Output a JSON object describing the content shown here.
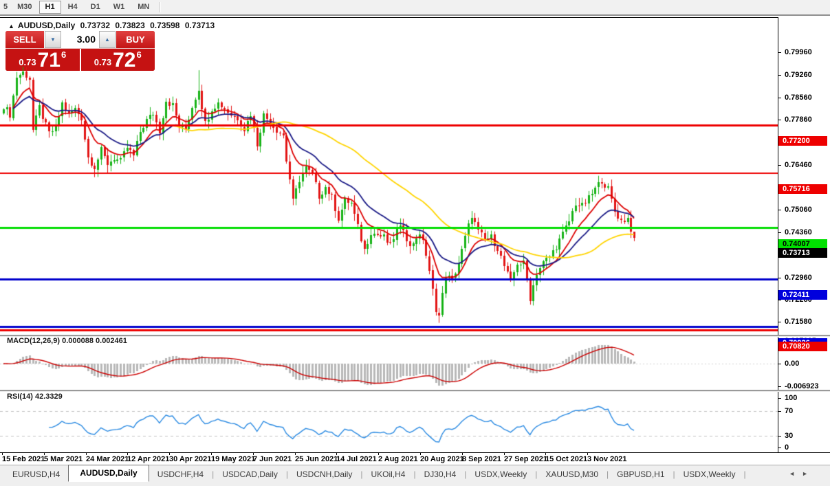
{
  "toolbar": {
    "timeframes": [
      {
        "label": "5",
        "active": false,
        "partial": true
      },
      {
        "label": "M30",
        "active": false
      },
      {
        "label": "H1",
        "active": true
      },
      {
        "label": "H4",
        "active": false
      },
      {
        "label": "D1",
        "active": false
      },
      {
        "label": "W1",
        "active": false
      },
      {
        "label": "MN",
        "active": false
      }
    ]
  },
  "chart_header": {
    "collapse_arrow": "▲",
    "symbol": "AUDUSD,Daily",
    "open": "0.73732",
    "high": "0.73823",
    "low": "0.73598",
    "close": "0.73713"
  },
  "trade_panel": {
    "sell_label": "SELL",
    "buy_label": "BUY",
    "volume": "3.00",
    "spin_down_glyph": "▼",
    "spin_up_glyph": "▲",
    "sell_quote": {
      "prefix": "0.73",
      "big": "71",
      "sup": "6"
    },
    "buy_quote": {
      "prefix": "0.73",
      "big": "72",
      "sup": "6"
    }
  },
  "price_axis": {
    "ticks": [
      {
        "label": "0.79960",
        "price": 0.7996
      },
      {
        "label": "0.79260",
        "price": 0.7926
      },
      {
        "label": "0.78560",
        "price": 0.7856
      },
      {
        "label": "0.77860",
        "price": 0.7786
      },
      {
        "label": "0.76460",
        "price": 0.7646
      },
      {
        "label": "0.75060",
        "price": 0.7506
      },
      {
        "label": "0.74360",
        "price": 0.7436
      },
      {
        "label": "0.72960",
        "price": 0.7296
      },
      {
        "label": "0.72280",
        "price": 0.7228
      },
      {
        "label": "0.71580",
        "price": 0.7158
      }
    ],
    "badges": [
      {
        "label": "0.70926",
        "price": 0.70926,
        "bg": "#0000dd",
        "fg": "#ffffff"
      },
      {
        "label": "0.77200",
        "price": 0.772,
        "bg": "#ee0000",
        "fg": "#ffffff"
      },
      {
        "label": "0.75716",
        "price": 0.75716,
        "bg": "#ee0000",
        "fg": "#ffffff"
      },
      {
        "label": "0.74007",
        "price": 0.74007,
        "bg": "#00e000",
        "fg": "#000000"
      },
      {
        "label": "0.73713",
        "price": 0.73713,
        "bg": "#000000",
        "fg": "#ffffff"
      },
      {
        "label": "0.72411",
        "price": 0.72411,
        "bg": "#0000dd",
        "fg": "#ffffff"
      },
      {
        "label": "0.70820",
        "price": 0.7082,
        "bg": "#ee0000",
        "fg": "#ffffff"
      }
    ]
  },
  "macd_panel": {
    "label": "MACD(12,26,9) 0.000088 0.002461",
    "axis": [
      {
        "label": "0.007015",
        "value": 0.007015
      },
      {
        "label": "0.00",
        "value": 0
      },
      {
        "label": "-0.006923",
        "value": -0.006923
      }
    ]
  },
  "rsi_panel": {
    "label": "RSI(14) 42.3329",
    "axis": [
      {
        "label": "100",
        "value": 100
      },
      {
        "label": "70",
        "value": 70
      },
      {
        "label": "30",
        "value": 30
      },
      {
        "label": "0",
        "value": 0
      }
    ],
    "levels": [
      70,
      30
    ]
  },
  "date_axis": [
    "15 Feb 2021",
    "5 Mar 2021",
    "24 Mar 2021",
    "12 Apr 2021",
    "30 Apr 2021",
    "19 May 2021",
    "7 Jun 2021",
    "25 Jun 2021",
    "14 Jul 2021",
    "2 Aug 2021",
    "20 Aug 2021",
    "8 Sep 2021",
    "27 Sep 2021",
    "15 Oct 2021",
    "3 Nov 2021"
  ],
  "tab_bar": {
    "tabs": [
      {
        "label": "EURUSD,H4",
        "active": false
      },
      {
        "label": "AUDUSD,Daily",
        "active": true
      },
      {
        "label": "USDCHF,H4",
        "active": false
      },
      {
        "label": "USDCAD,Daily",
        "active": false
      },
      {
        "label": "USDCNH,Daily",
        "active": false
      },
      {
        "label": "UKOil,H4",
        "active": false
      },
      {
        "label": "DJ30,H4",
        "active": false
      },
      {
        "label": "USDX,Weekly",
        "active": false
      },
      {
        "label": "XAUUSD,M30",
        "active": false
      },
      {
        "label": "GBPUSD,H1",
        "active": false
      },
      {
        "label": "USDX,Weekly",
        "active": false
      }
    ],
    "scroll_left_glyph": "◄",
    "scroll_right_glyph": "►"
  },
  "chart_data": {
    "type": "candlestick",
    "symbol": "AUDUSD",
    "timeframe": "Daily",
    "current_ohlc": {
      "open": 0.73732,
      "high": 0.73823,
      "low": 0.73598,
      "close": 0.73713
    },
    "num_candles": 195,
    "ylim": [
      0.706,
      0.806
    ],
    "colors": {
      "bull": "#17b317",
      "bear": "#e21414",
      "ma_fast": "#dd0000",
      "ma_mid": "#1a1a86",
      "ma_slow": "#ffd400",
      "macd_hist": "#b8b8b8",
      "macd_signal": "#cc0000",
      "rsi_line": "#2a8ae2",
      "level_dash": "#c0c0c0"
    },
    "close_keypoints": [
      [
        0,
        0.778
      ],
      [
        2,
        0.7752
      ],
      [
        4,
        0.787
      ],
      [
        6,
        0.7885
      ],
      [
        8,
        0.7866
      ],
      [
        9,
        0.7706
      ],
      [
        11,
        0.7775
      ],
      [
        13,
        0.7718
      ],
      [
        14,
        0.7695
      ],
      [
        16,
        0.7712
      ],
      [
        18,
        0.7788
      ],
      [
        20,
        0.7752
      ],
      [
        22,
        0.777
      ],
      [
        24,
        0.7742
      ],
      [
        26,
        0.762
      ],
      [
        28,
        0.759
      ],
      [
        30,
        0.7642
      ],
      [
        32,
        0.76
      ],
      [
        34,
        0.7618
      ],
      [
        36,
        0.7608
      ],
      [
        38,
        0.765
      ],
      [
        40,
        0.7625
      ],
      [
        42,
        0.77
      ],
      [
        44,
        0.7735
      ],
      [
        46,
        0.7758
      ],
      [
        48,
        0.7702
      ],
      [
        50,
        0.7798
      ],
      [
        52,
        0.7782
      ],
      [
        54,
        0.7716
      ],
      [
        56,
        0.7708
      ],
      [
        58,
        0.7778
      ],
      [
        60,
        0.7835
      ],
      [
        62,
        0.7725
      ],
      [
        64,
        0.7772
      ],
      [
        66,
        0.7788
      ],
      [
        68,
        0.7772
      ],
      [
        70,
        0.7752
      ],
      [
        72,
        0.7742
      ],
      [
        74,
        0.7708
      ],
      [
        76,
        0.7755
      ],
      [
        78,
        0.7662
      ],
      [
        80,
        0.7752
      ],
      [
        82,
        0.773
      ],
      [
        84,
        0.7706
      ],
      [
        86,
        0.7688
      ],
      [
        87,
        0.761
      ],
      [
        88,
        0.7552
      ],
      [
        89,
        0.7482
      ],
      [
        91,
        0.7552
      ],
      [
        93,
        0.7588
      ],
      [
        95,
        0.7565
      ],
      [
        97,
        0.75
      ],
      [
        99,
        0.7528
      ],
      [
        101,
        0.7495
      ],
      [
        103,
        0.7432
      ],
      [
        105,
        0.7485
      ],
      [
        107,
        0.7478
      ],
      [
        109,
        0.7402
      ],
      [
        111,
        0.7332
      ],
      [
        113,
        0.7388
      ],
      [
        115,
        0.738
      ],
      [
        117,
        0.7372
      ],
      [
        119,
        0.7345
      ],
      [
        121,
        0.7395
      ],
      [
        123,
        0.7402
      ],
      [
        125,
        0.7338
      ],
      [
        127,
        0.7375
      ],
      [
        129,
        0.7368
      ],
      [
        131,
        0.7262
      ],
      [
        133,
        0.7148
      ],
      [
        134,
        0.7128
      ],
      [
        136,
        0.7255
      ],
      [
        138,
        0.7238
      ],
      [
        140,
        0.7292
      ],
      [
        142,
        0.737
      ],
      [
        144,
        0.7442
      ],
      [
        146,
        0.7388
      ],
      [
        148,
        0.7365
      ],
      [
        150,
        0.7372
      ],
      [
        152,
        0.7338
      ],
      [
        154,
        0.7282
      ],
      [
        156,
        0.7232
      ],
      [
        158,
        0.7292
      ],
      [
        160,
        0.729
      ],
      [
        162,
        0.7182
      ],
      [
        164,
        0.7262
      ],
      [
        166,
        0.7292
      ],
      [
        168,
        0.7312
      ],
      [
        170,
        0.7345
      ],
      [
        172,
        0.7382
      ],
      [
        174,
        0.7422
      ],
      [
        176,
        0.7478
      ],
      [
        178,
        0.7468
      ],
      [
        180,
        0.7492
      ],
      [
        182,
        0.7522
      ],
      [
        184,
        0.7548
      ],
      [
        186,
        0.7522
      ],
      [
        188,
        0.7452
      ],
      [
        190,
        0.7422
      ],
      [
        192,
        0.7432
      ],
      [
        193,
        0.739
      ],
      [
        194,
        0.73713
      ]
    ],
    "overrides": {
      "60": {
        "high": 0.7891
      },
      "134": {
        "low": 0.7106
      },
      "184": {
        "high": 0.7556
      },
      "194": {
        "high": 0.73823,
        "low": 0.73598
      }
    },
    "indicators": {
      "moving_averages": [
        {
          "type": "ema",
          "period": 10,
          "color": "#dd0000"
        },
        {
          "type": "ema",
          "period": 21,
          "color": "#1a1a86"
        },
        {
          "type": "sma",
          "period": 50,
          "color": "#ffd400"
        }
      ],
      "macd": {
        "fast": 12,
        "slow": 26,
        "signal": 9,
        "current_main": 8.8e-05,
        "current_signal": 0.002461
      },
      "rsi": {
        "period": 14,
        "current": 42.3329,
        "levels": [
          70,
          30
        ]
      }
    },
    "hlines": [
      {
        "price": 0.772,
        "color": "#ee0000",
        "width": 3
      },
      {
        "price": 0.75716,
        "color": "#ee0000",
        "width": 2
      },
      {
        "price": 0.74007,
        "color": "#00dd00",
        "width": 3
      },
      {
        "price": 0.72411,
        "color": "#0000cc",
        "width": 3
      },
      {
        "price": 0.70926,
        "color": "#0000cc",
        "width": 3
      },
      {
        "price": 0.7082,
        "color": "#ee0000",
        "width": 3
      }
    ]
  }
}
